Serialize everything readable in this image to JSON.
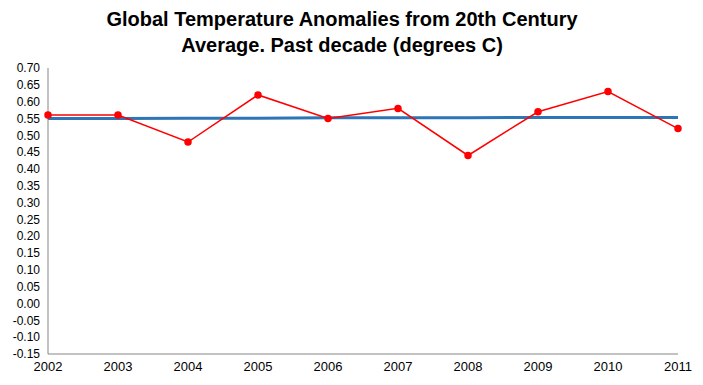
{
  "chart_data": {
    "type": "line",
    "title": "Global Temperature Anomalies from 20th Century Average. Past decade (degrees C)",
    "categories": [
      "2002",
      "2003",
      "2004",
      "2005",
      "2006",
      "2007",
      "2008",
      "2009",
      "2010",
      "2011"
    ],
    "series": [
      {
        "color": "#2e75b6",
        "marker": "none",
        "values": [
          0.55,
          0.55,
          0.551,
          0.551,
          0.552,
          0.552,
          0.552,
          0.553,
          0.553,
          0.553
        ]
      },
      {
        "color": "#ff0000",
        "marker": "circle",
        "values": [
          0.56,
          0.56,
          0.48,
          0.62,
          0.55,
          0.58,
          0.44,
          0.57,
          0.63,
          0.52
        ]
      }
    ],
    "ylim": [
      -0.15,
      0.7
    ],
    "yticks": [
      -0.15,
      {
        "value": -0.1,
        "label": "-0.10"
      },
      -0.05,
      {
        "value": 0,
        "label": "0.00"
      },
      0.05,
      {
        "value": 0.1,
        "label": "0.10"
      },
      0.15,
      {
        "value": 0.2,
        "label": "0.20"
      },
      0.25,
      {
        "value": 0.3,
        "label": "0.30"
      },
      0.35,
      {
        "value": 0.4,
        "label": "0.40"
      },
      0.45,
      {
        "value": 0.5,
        "label": "0.50"
      },
      0.55,
      {
        "value": 0.6,
        "label": "0.60"
      },
      0.65,
      {
        "value": 0.7,
        "label": "0.70"
      }
    ],
    "grid": false
  }
}
